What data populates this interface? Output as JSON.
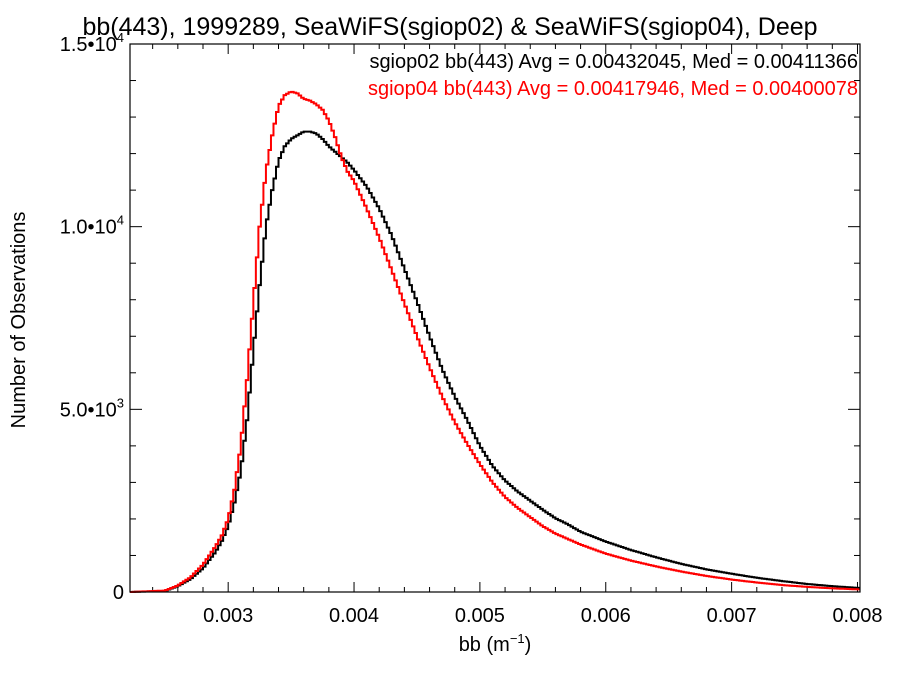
{
  "chart_data": {
    "type": "line",
    "title": "bb(443), 1999289, SeaWiFS(sgiop02) & SeaWiFS(sgiop04), Deep",
    "xlabel": "bb (m",
    "xlabel_sup": "−1",
    "xlabel_suffix": ")",
    "ylabel": "Number of Observations",
    "xlim": [
      0.00222,
      0.00802
    ],
    "ylim": [
      0,
      15000
    ],
    "x_ticks": [
      {
        "value": 0.003,
        "label": "0.003"
      },
      {
        "value": 0.004,
        "label": "0.004"
      },
      {
        "value": 0.005,
        "label": "0.005"
      },
      {
        "value": 0.006,
        "label": "0.006"
      },
      {
        "value": 0.007,
        "label": "0.007"
      },
      {
        "value": 0.008,
        "label": "0.008"
      }
    ],
    "y_ticks": [
      {
        "value": 0,
        "label": "0",
        "sup": ""
      },
      {
        "value": 5000,
        "label": "5.0•10",
        "sup": "3"
      },
      {
        "value": 10000,
        "label": "1.0•10",
        "sup": "4"
      },
      {
        "value": 15000,
        "label": "1.5•10",
        "sup": "4"
      }
    ],
    "grid": false,
    "legend_position": "top-right",
    "series": [
      {
        "name": "sgiop02 bb(443) Avg = 0.00432045, Med = 0.00411366",
        "color": "#000000",
        "x": [
          0.00222,
          0.0025,
          0.0026,
          0.0027,
          0.0028,
          0.0029,
          0.00295,
          0.003,
          0.00305,
          0.0031,
          0.00315,
          0.0032,
          0.00325,
          0.0033,
          0.00335,
          0.0034,
          0.00345,
          0.0035,
          0.00355,
          0.0036,
          0.00365,
          0.0037,
          0.00375,
          0.0038,
          0.00385,
          0.0039,
          0.00395,
          0.004,
          0.0041,
          0.0042,
          0.0043,
          0.0044,
          0.0045,
          0.0046,
          0.0047,
          0.0048,
          0.0049,
          0.005,
          0.0051,
          0.0052,
          0.0053,
          0.0054,
          0.0055,
          0.0056,
          0.0057,
          0.0058,
          0.006,
          0.0062,
          0.0064,
          0.0066,
          0.0068,
          0.007,
          0.0072,
          0.0074,
          0.0076,
          0.0078,
          0.00802
        ],
        "y": [
          0,
          30,
          160,
          350,
          650,
          1100,
          1400,
          1800,
          2450,
          3300,
          4700,
          6600,
          8400,
          10000,
          11000,
          11800,
          12200,
          12400,
          12500,
          12600,
          12600,
          12550,
          12400,
          12200,
          12050,
          11900,
          11750,
          11550,
          11100,
          10500,
          9750,
          8850,
          7950,
          7000,
          6100,
          5350,
          4700,
          4000,
          3450,
          3050,
          2750,
          2500,
          2250,
          2020,
          1850,
          1650,
          1380,
          1150,
          950,
          770,
          620,
          500,
          390,
          300,
          220,
          160,
          110
        ]
      },
      {
        "name": "sgiop04 bb(443) Avg = 0.00417946, Med = 0.00400078",
        "color": "#ff0000",
        "x": [
          0.00222,
          0.0025,
          0.0026,
          0.0027,
          0.0028,
          0.0029,
          0.00295,
          0.003,
          0.00305,
          0.0031,
          0.00315,
          0.0032,
          0.00325,
          0.0033,
          0.00335,
          0.0034,
          0.00345,
          0.0035,
          0.00355,
          0.0036,
          0.00365,
          0.0037,
          0.00375,
          0.0038,
          0.00385,
          0.0039,
          0.00395,
          0.004,
          0.0041,
          0.0042,
          0.0043,
          0.0044,
          0.0045,
          0.0046,
          0.0047,
          0.0048,
          0.0049,
          0.005,
          0.0051,
          0.0052,
          0.0053,
          0.0054,
          0.0055,
          0.0056,
          0.0057,
          0.0058,
          0.006,
          0.0062,
          0.0064,
          0.0066,
          0.0068,
          0.007,
          0.0072,
          0.0074,
          0.0076,
          0.0078,
          0.00802
        ],
        "y": [
          0,
          40,
          180,
          400,
          750,
          1250,
          1550,
          2000,
          2800,
          4000,
          5800,
          7900,
          10000,
          11500,
          12500,
          13300,
          13600,
          13700,
          13650,
          13500,
          13450,
          13350,
          13200,
          12900,
          12450,
          11900,
          11500,
          11250,
          10500,
          9700,
          8800,
          7900,
          7000,
          6150,
          5350,
          4650,
          4050,
          3500,
          3000,
          2600,
          2300,
          2050,
          1800,
          1600,
          1450,
          1300,
          1050,
          860,
          700,
          560,
          440,
          340,
          260,
          190,
          140,
          100,
          70
        ]
      }
    ]
  }
}
